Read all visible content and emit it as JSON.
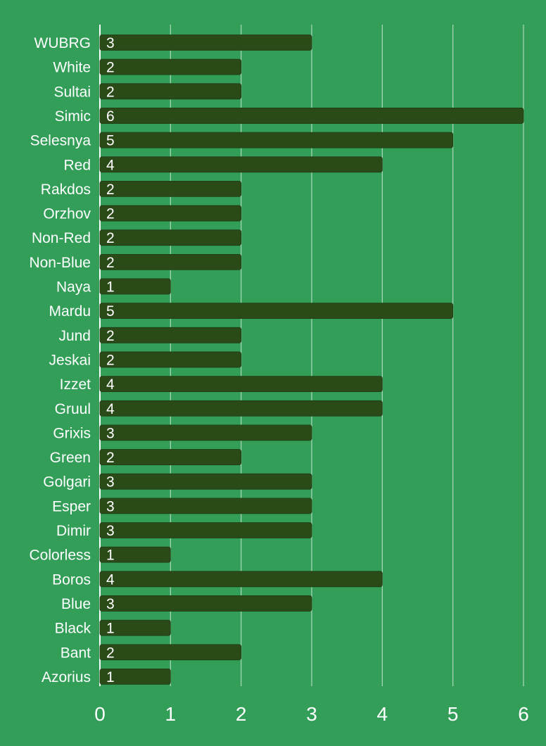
{
  "chart_data": {
    "type": "bar",
    "orientation": "horizontal",
    "title": "",
    "xlabel": "",
    "ylabel": "",
    "categories": [
      "WUBRG",
      "White",
      "Sultai",
      "Simic",
      "Selesnya",
      "Red",
      "Rakdos",
      "Orzhov",
      "Non-Red",
      "Non-Blue",
      "Naya",
      "Mardu",
      "Jund",
      "Jeskai",
      "Izzet",
      "Gruul",
      "Grixis",
      "Green",
      "Golgari",
      "Esper",
      "Dimir",
      "Colorless",
      "Boros",
      "Blue",
      "Black",
      "Bant",
      "Azorius"
    ],
    "values": [
      3,
      2,
      2,
      6,
      5,
      4,
      2,
      2,
      2,
      2,
      1,
      5,
      2,
      2,
      4,
      4,
      3,
      2,
      3,
      3,
      3,
      1,
      4,
      3,
      1,
      2,
      1
    ],
    "xlim": [
      0,
      6
    ],
    "x_ticks": [
      "0",
      "1",
      "2",
      "3",
      "4",
      "5",
      "6"
    ],
    "grid": true,
    "legend": "none",
    "colors": {
      "background": "#329e58",
      "bar": "#2a4a18",
      "gridline": "#d8ecdc",
      "text": "#ffffff"
    }
  }
}
